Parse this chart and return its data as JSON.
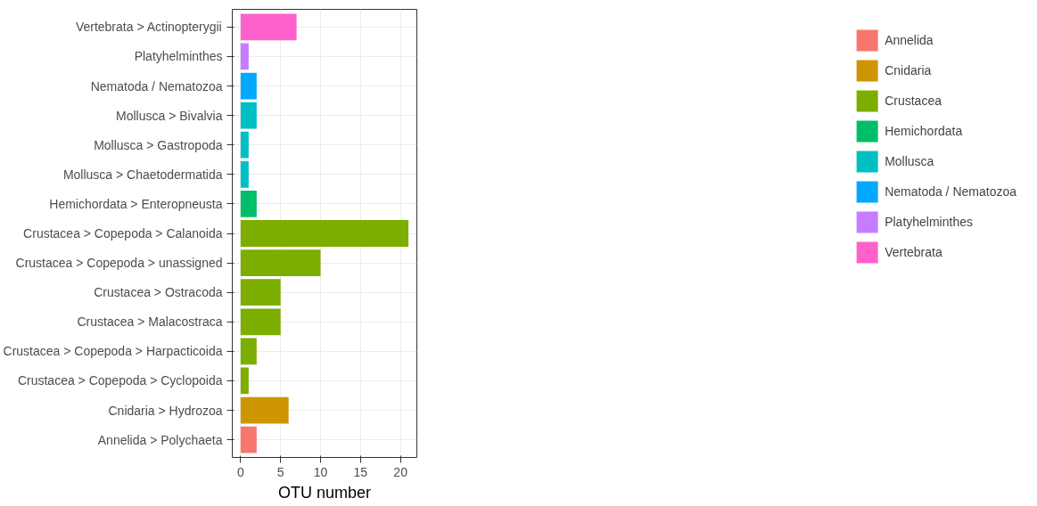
{
  "chart_data": {
    "type": "bar",
    "orientation": "horizontal",
    "xlabel": "OTU number",
    "categories": [
      "Vertebrata > Actinopterygii",
      "Platyhelminthes",
      "Nematoda / Nematozoa",
      "Mollusca > Bivalvia",
      "Mollusca > Gastropoda",
      "Mollusca > Chaetodermatida",
      "Hemichordata > Enteropneusta",
      "Crustacea > Copepoda > Calanoida",
      "Crustacea > Copepoda > unassigned",
      "Crustacea > Ostracoda",
      "Crustacea > Malacostraca",
      "Crustacea > Copepoda > Harpacticoida",
      "Crustacea > Copepoda > Cyclopoida",
      "Cnidaria > Hydrozoa",
      "Annelida > Polychaeta"
    ],
    "series": [
      {
        "name": "Annelida",
        "color": "#f8766d",
        "values": [
          null,
          null,
          null,
          null,
          null,
          null,
          null,
          null,
          null,
          null,
          null,
          null,
          null,
          null,
          2
        ]
      },
      {
        "name": "Cnidaria",
        "color": "#cd9600",
        "values": [
          null,
          null,
          null,
          null,
          null,
          null,
          null,
          null,
          null,
          null,
          null,
          null,
          null,
          6,
          null
        ]
      },
      {
        "name": "Crustacea",
        "color": "#7cae00",
        "values": [
          null,
          null,
          null,
          null,
          null,
          null,
          null,
          21,
          10,
          5,
          5,
          2,
          1,
          null,
          null
        ]
      },
      {
        "name": "Hemichordata",
        "color": "#00be67",
        "values": [
          null,
          null,
          null,
          null,
          null,
          null,
          2,
          null,
          null,
          null,
          null,
          null,
          null,
          null,
          null
        ]
      },
      {
        "name": "Mollusca",
        "color": "#00bfc4",
        "values": [
          null,
          null,
          null,
          2,
          1,
          1,
          null,
          null,
          null,
          null,
          null,
          null,
          null,
          null,
          null
        ]
      },
      {
        "name": "Nematoda / Nematozoa",
        "color": "#00a9ff",
        "values": [
          null,
          null,
          2,
          null,
          null,
          null,
          null,
          null,
          null,
          null,
          null,
          null,
          null,
          null,
          null
        ]
      },
      {
        "name": "Platyhelminthes",
        "color": "#c77cff",
        "values": [
          null,
          1,
          null,
          null,
          null,
          null,
          null,
          null,
          null,
          null,
          null,
          null,
          null,
          null,
          null
        ]
      },
      {
        "name": "Vertebrata",
        "color": "#ff61cc",
        "values": [
          7,
          null,
          null,
          null,
          null,
          null,
          null,
          null,
          null,
          null,
          null,
          null,
          null,
          null,
          null
        ]
      }
    ],
    "xlim": [
      -1.05,
      22.05
    ],
    "xticks": [
      0,
      5,
      10,
      15,
      20
    ],
    "grid": true,
    "legend": "right"
  }
}
